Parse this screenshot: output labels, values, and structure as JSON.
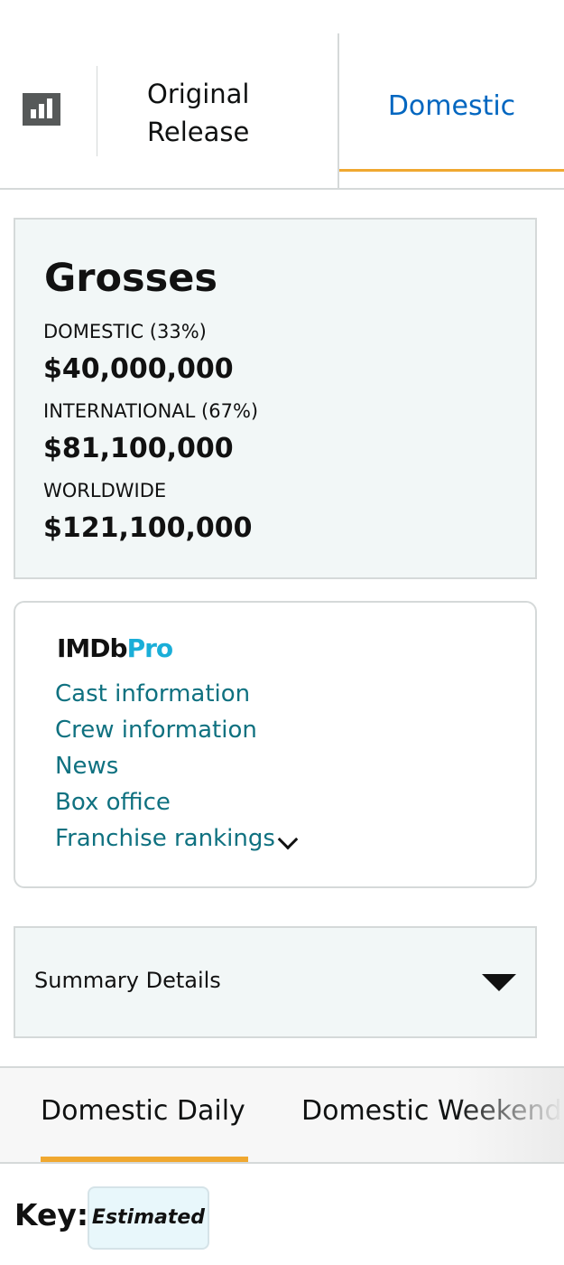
{
  "tabs": {
    "chart_icon": "bar-chart-icon",
    "release_label_line1": "Original",
    "release_label_line2": "Release",
    "domestic_label": "Domestic"
  },
  "grosses": {
    "title": "Grosses",
    "domestic_label": "DOMESTIC (33%)",
    "domestic_value": "$40,000,000",
    "international_label": "INTERNATIONAL (67%)",
    "international_value": "$81,100,000",
    "worldwide_label": "WORLDWIDE",
    "worldwide_value": "$121,100,000"
  },
  "imdbpro": {
    "logo_part1": "IMDb",
    "logo_part2": "Pro",
    "links": [
      "Cast information",
      "Crew information",
      "News",
      "Box office",
      "Franchise rankings"
    ]
  },
  "summary": {
    "label": "Summary Details"
  },
  "bottom_tabs": {
    "items": [
      "Domestic Daily",
      "Domestic Weekend"
    ]
  },
  "key": {
    "label": "Key:",
    "badge": "Estimated"
  },
  "colors": {
    "link": "#0f7180",
    "active_tab": "#0066c0",
    "accent": "#f0a830",
    "panel_bg": "#f2f7f7",
    "pro_blue": "#1aaed8"
  }
}
